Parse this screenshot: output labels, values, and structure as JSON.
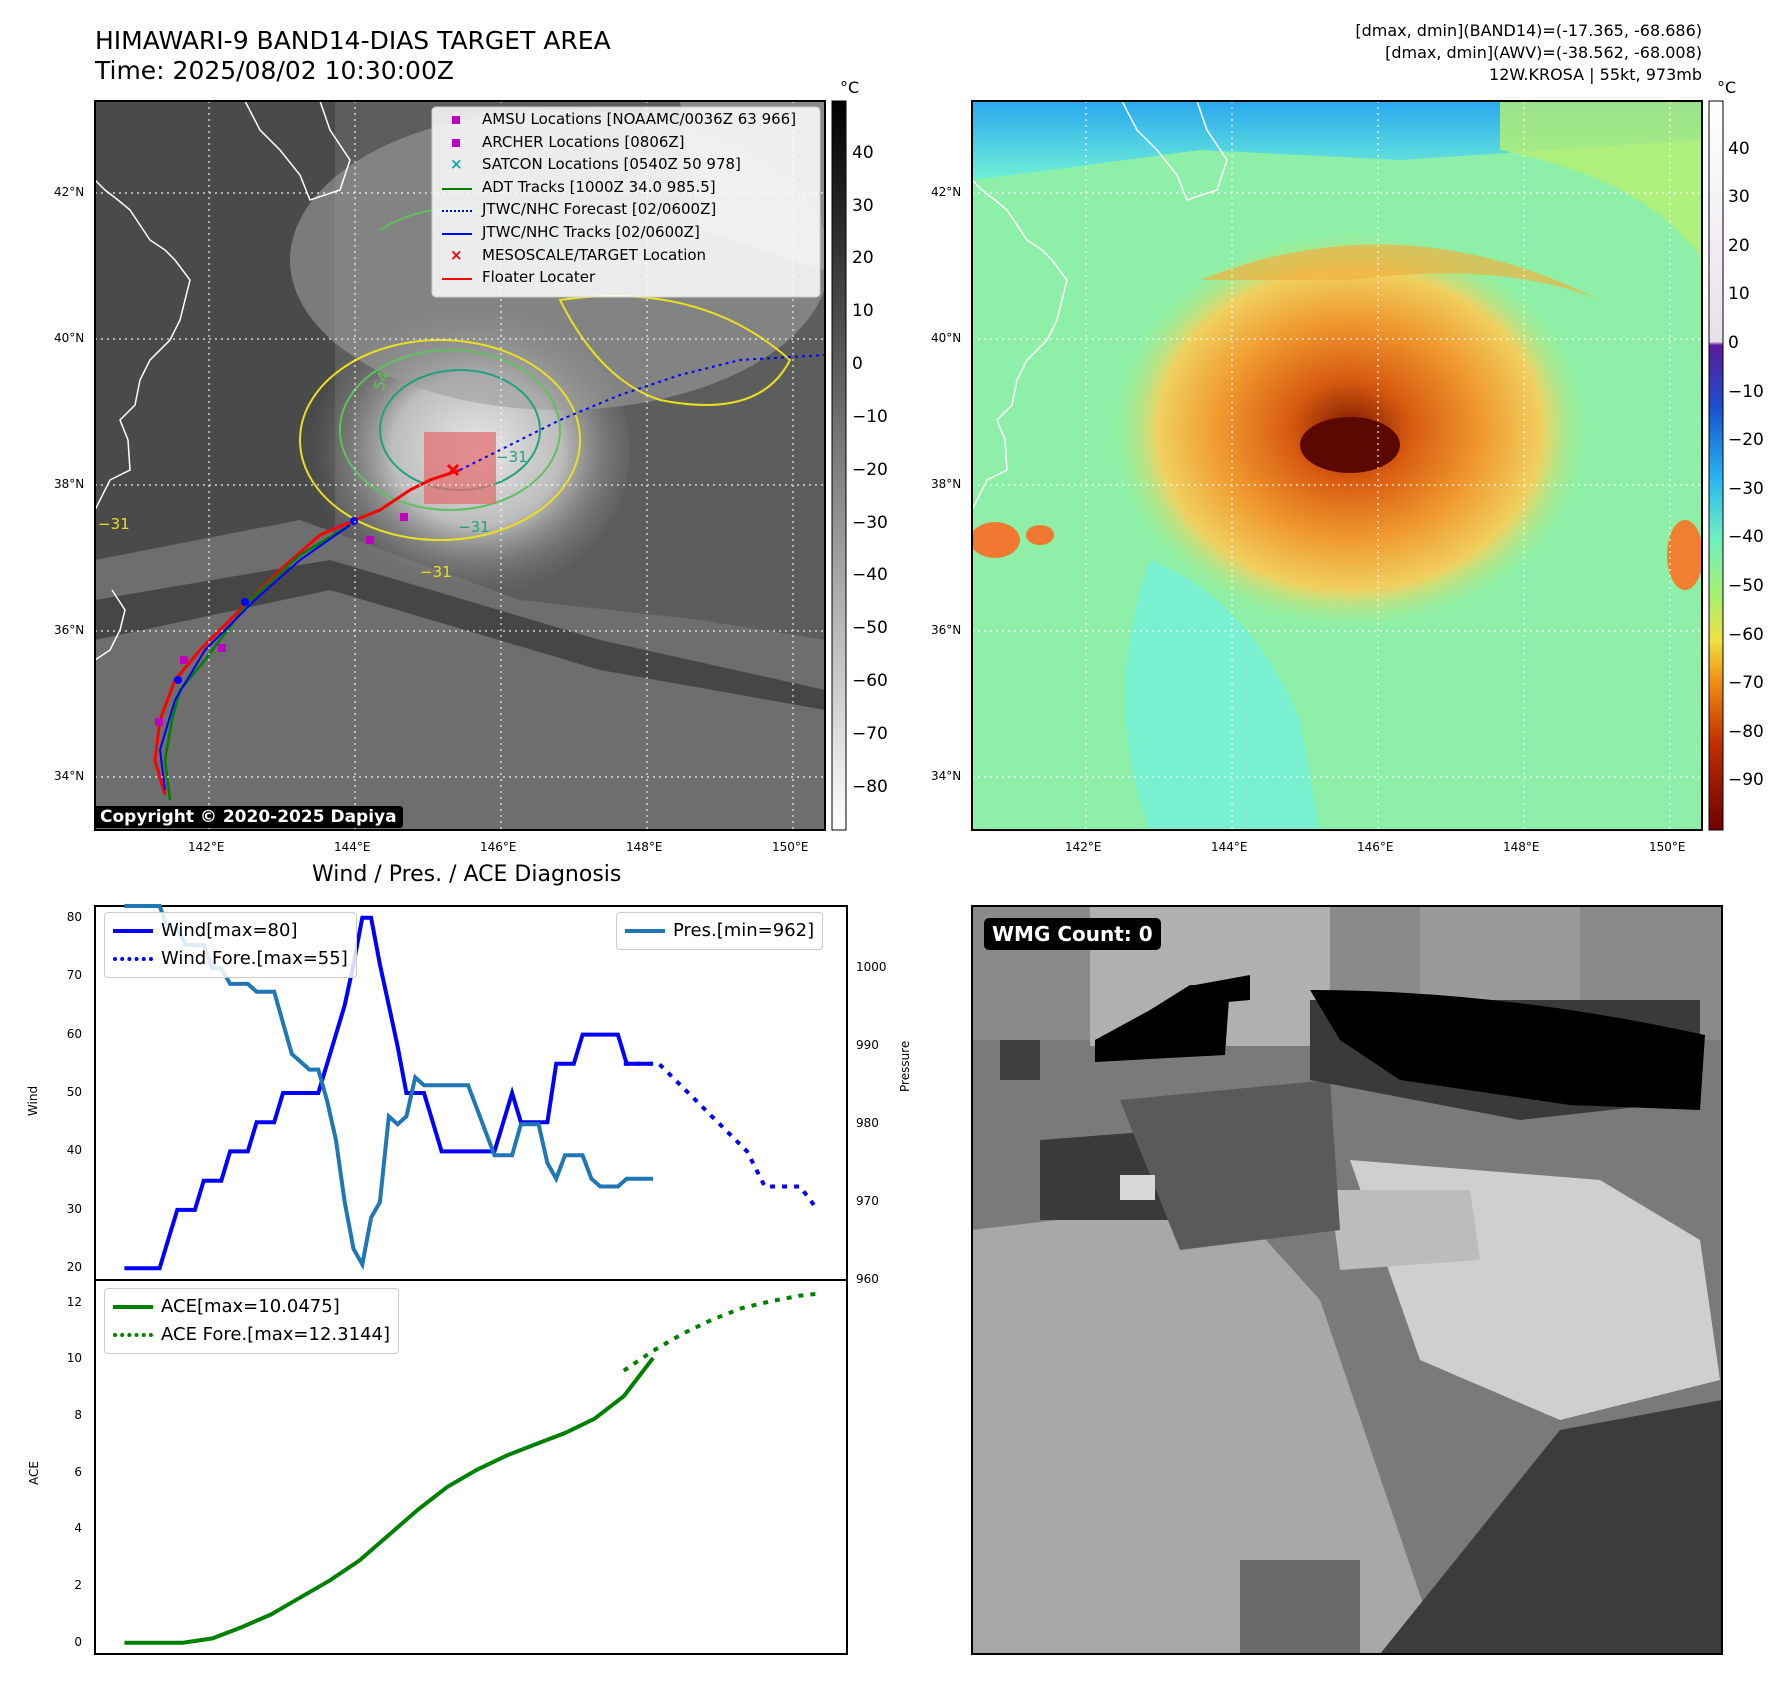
{
  "header": {
    "title_line1": "HIMAWARI-9 BAND14-DIAS TARGET AREA",
    "title_line2": "Time: 2025/08/02 10:30:00Z",
    "stats_line1": "[dmax, dmin](BAND14)=(-17.365, -68.686)",
    "stats_line2": "[dmax, dmin](AWV)=(-38.562, -68.008)",
    "stats_line3": "12W.KROSA | 55kt, 973mb"
  },
  "maps": {
    "lat_labels": [
      "42°N",
      "40°N",
      "38°N",
      "36°N",
      "34°N"
    ],
    "lon_labels": [
      "142°E",
      "144°E",
      "146°E",
      "148°E",
      "150°E"
    ],
    "colorbar_unit": "°C",
    "gray_colorbar_ticks": [
      "40",
      "30",
      "20",
      "10",
      "0",
      "−10",
      "−20",
      "−30",
      "−40",
      "−50",
      "−60",
      "−70",
      "−80"
    ],
    "color_colorbar_ticks": [
      "40",
      "30",
      "20",
      "10",
      "0",
      "−10",
      "−20",
      "−30",
      "−40",
      "−50",
      "−60",
      "−70",
      "−80",
      "−90"
    ],
    "contour_labels": [
      "54",
      "−31",
      "−31",
      "−31",
      "−31"
    ],
    "copyright": "Copyright © 2020-2025 Dapiya",
    "legend": [
      {
        "label": "AMSU Locations [NOAAMC/0036Z 63 966]",
        "color": "#c000c0",
        "marker": "square"
      },
      {
        "label": "ARCHER Locations [0806Z]",
        "color": "#c000c0",
        "marker": "square"
      },
      {
        "label": "SATCON Locations [0540Z 50 978]",
        "color": "#00b0b0",
        "marker": "x"
      },
      {
        "label": "ADT Tracks [1000Z 34.0 985.5]",
        "color": "#008000",
        "marker": "line"
      },
      {
        "label": "JTWC/NHC Forecast [02/0600Z]",
        "color": "#0000ff",
        "marker": "dotted"
      },
      {
        "label": "JTWC/NHC Tracks [02/0600Z]",
        "color": "#0000ff",
        "marker": "line-dot"
      },
      {
        "label": "MESOSCALE/TARGET Location",
        "color": "#ff0000",
        "marker": "x"
      },
      {
        "label": "Floater Locater",
        "color": "#ff0000",
        "marker": "line"
      }
    ]
  },
  "diagnosis": {
    "title": "Wind / Pres. / ACE Diagnosis",
    "wind_ylabel": "Wind",
    "pres_ylabel": "Pressure",
    "ace_ylabel": "ACE",
    "wmg_label": "WMG Count: 0"
  },
  "chart_data": [
    {
      "type": "line",
      "title": "Wind / Pres. / ACE Diagnosis",
      "ylabel": "Wind",
      "ylim": [
        18,
        82
      ],
      "yticks": [
        20,
        30,
        40,
        50,
        60,
        70,
        80
      ],
      "y2label": "Pressure",
      "y2lim": [
        960,
        1008
      ],
      "y2ticks": [
        960,
        970,
        980,
        990,
        1000
      ],
      "series": [
        {
          "name": "Wind[max=80]",
          "axis": "left",
          "style": "solid",
          "color": "#0000ff",
          "width": 4,
          "x": [
            0,
            3,
            6,
            9,
            12,
            15,
            18,
            21,
            24,
            27,
            30,
            33,
            36,
            39,
            42,
            45,
            48,
            51,
            54,
            57,
            60,
            63,
            66,
            69,
            72,
            75,
            78,
            81,
            84,
            87,
            90,
            93,
            96,
            99,
            102,
            105,
            108,
            111,
            114,
            117,
            120,
            123,
            126,
            129,
            132,
            135,
            138,
            141,
            144,
            147,
            150,
            153,
            156,
            159,
            162,
            165,
            168,
            171,
            174,
            177,
            180
          ],
          "values": [
            20,
            20,
            20,
            20,
            20,
            25,
            30,
            30,
            30,
            35,
            35,
            35,
            40,
            40,
            40,
            45,
            45,
            45,
            50,
            50,
            50,
            50,
            50,
            55,
            60,
            65,
            72,
            80,
            80,
            72,
            65,
            58,
            50,
            50,
            50,
            45,
            40,
            40,
            40,
            40,
            40,
            40,
            40,
            45,
            50,
            45,
            45,
            45,
            45,
            55,
            55,
            55,
            60,
            60,
            60,
            60,
            60,
            55,
            55,
            55,
            55
          ]
        },
        {
          "name": "Wind Fore.[max=55]",
          "axis": "left",
          "style": "dotted",
          "color": "#0000ff",
          "width": 4,
          "x": [
            170,
            176,
            182,
            188,
            194,
            200,
            206,
            212,
            218,
            224,
            230,
            236
          ],
          "values": [
            55,
            55,
            55,
            52,
            49,
            46,
            43,
            40,
            34,
            34,
            34,
            30
          ]
        },
        {
          "name": "Pres.[min=962]",
          "axis": "right",
          "style": "solid",
          "color": "#1f77b4",
          "width": 4,
          "x": [
            0,
            3,
            6,
            9,
            12,
            15,
            18,
            21,
            24,
            27,
            30,
            33,
            36,
            39,
            42,
            45,
            48,
            51,
            54,
            57,
            60,
            63,
            66,
            69,
            72,
            75,
            78,
            81,
            84,
            87,
            90,
            93,
            96,
            99,
            102,
            105,
            108,
            111,
            114,
            117,
            120,
            123,
            126,
            129,
            132,
            135,
            138,
            141,
            144,
            147,
            150,
            153,
            156,
            159,
            162,
            165,
            168,
            171,
            174,
            177,
            180
          ],
          "values": [
            1008,
            1008,
            1008,
            1008,
            1008,
            1005,
            1005,
            1003,
            1003,
            1003,
            1000,
            1000,
            998,
            998,
            998,
            997,
            997,
            997,
            993,
            989,
            988,
            987,
            987,
            983,
            978,
            970,
            964,
            962,
            968,
            970,
            981,
            980,
            981,
            986,
            985,
            985,
            985,
            985,
            985,
            985,
            982,
            979,
            976,
            976,
            976,
            980,
            980,
            980,
            975,
            973,
            976,
            976,
            976,
            973,
            972,
            972,
            972,
            973,
            973,
            973,
            973
          ]
        },
        {
          "name": "ACE[max=10.0475]",
          "axis": "ace",
          "style": "solid",
          "color": "#008000",
          "width": 4,
          "x": [
            0,
            10,
            20,
            30,
            35,
            40,
            50,
            60,
            70,
            80,
            90,
            100,
            110,
            120,
            130,
            140,
            150,
            160,
            170,
            180
          ],
          "values": [
            0,
            0,
            0,
            0.15,
            0.35,
            0.55,
            1.0,
            1.6,
            2.2,
            2.9,
            3.8,
            4.7,
            5.5,
            6.1,
            6.6,
            7.0,
            7.4,
            7.9,
            8.7,
            10.0475
          ]
        },
        {
          "name": "ACE Fore.[max=12.3144]",
          "axis": "ace",
          "style": "dotted",
          "color": "#008000",
          "width": 4,
          "x": [
            170,
            180,
            190,
            200,
            210,
            220,
            230,
            236
          ],
          "values": [
            9.6,
            10.3,
            10.9,
            11.4,
            11.8,
            12.05,
            12.25,
            12.3144
          ]
        }
      ],
      "ace_ylim": [
        -0.4,
        12.8
      ],
      "ace_yticks": [
        0,
        2,
        4,
        6,
        8,
        10,
        12
      ]
    }
  ]
}
